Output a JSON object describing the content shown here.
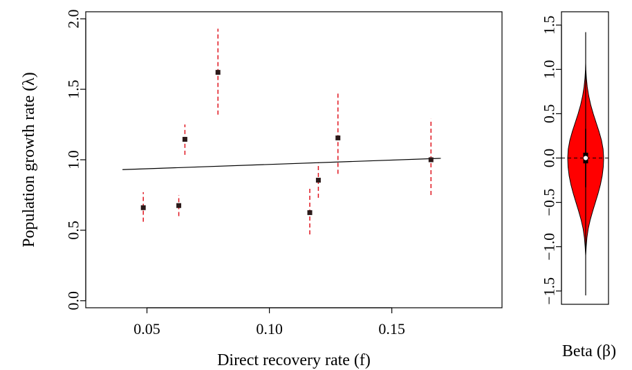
{
  "chart_data": [
    {
      "type": "scatter",
      "xlabel": "Direct recovery rate (f)",
      "ylabel": "Population growth rate (λ)",
      "xlim": [
        0.025,
        0.195
      ],
      "ylim": [
        -0.05,
        2.05
      ],
      "x_ticks": [
        0.05,
        0.1,
        0.15
      ],
      "x_tick_labels": [
        "0.05",
        "0.10",
        "0.15"
      ],
      "y_ticks": [
        0.0,
        0.5,
        1.0,
        1.5,
        2.0
      ],
      "y_tick_labels": [
        "0.0",
        "0.5",
        "1.0",
        "1.5",
        "2.0"
      ],
      "point_color": "#2b1a1a",
      "error_bar_color": "#e0141e",
      "points": [
        {
          "x": 0.0485,
          "y": 0.66,
          "lower": 0.56,
          "upper": 0.77
        },
        {
          "x": 0.063,
          "y": 0.675,
          "lower": 0.6,
          "upper": 0.75
        },
        {
          "x": 0.0655,
          "y": 1.145,
          "lower": 1.035,
          "upper": 1.25
        },
        {
          "x": 0.079,
          "y": 1.62,
          "lower": 1.32,
          "upper": 1.93
        },
        {
          "x": 0.1165,
          "y": 0.625,
          "lower": 0.47,
          "upper": 0.805
        },
        {
          "x": 0.12,
          "y": 0.855,
          "lower": 0.73,
          "upper": 0.98
        },
        {
          "x": 0.128,
          "y": 1.155,
          "lower": 0.9,
          "upper": 1.48
        },
        {
          "x": 0.166,
          "y": 1.0,
          "lower": 0.75,
          "upper": 1.29
        }
      ],
      "regression_line": {
        "x": [
          0.04,
          0.17
        ],
        "y": [
          0.93,
          1.01
        ],
        "color": "#000000"
      }
    },
    {
      "type": "violin",
      "xlabel": "Beta (β)",
      "ylabel": "",
      "ylim": [
        -1.65,
        1.65
      ],
      "y_ticks": [
        -1.5,
        -1.0,
        -0.5,
        0.0,
        0.5,
        1.0,
        1.5
      ],
      "y_tick_labels": [
        "−1.5",
        "−1.0",
        "−0.5",
        "0.0",
        "0.5",
        "1.0",
        "1.5"
      ],
      "fill_color": "#ff0000",
      "min": -1.55,
      "max": 1.42,
      "q1": -0.06,
      "median": 0.0,
      "q3": 0.06,
      "whisker_low": -0.33,
      "whisker_high": 0.33,
      "reference_line": 0.0,
      "density": [
        {
          "y": -1.1,
          "w": 0.0
        },
        {
          "y": -1.0,
          "w": 0.03
        },
        {
          "y": -0.9,
          "w": 0.07
        },
        {
          "y": -0.8,
          "w": 0.14
        },
        {
          "y": -0.7,
          "w": 0.25
        },
        {
          "y": -0.6,
          "w": 0.39
        },
        {
          "y": -0.5,
          "w": 0.54
        },
        {
          "y": -0.4,
          "w": 0.69
        },
        {
          "y": -0.3,
          "w": 0.82
        },
        {
          "y": -0.2,
          "w": 0.92
        },
        {
          "y": -0.1,
          "w": 0.98
        },
        {
          "y": 0.0,
          "w": 1.0
        },
        {
          "y": 0.1,
          "w": 0.97
        },
        {
          "y": 0.2,
          "w": 0.88
        },
        {
          "y": 0.3,
          "w": 0.74
        },
        {
          "y": 0.4,
          "w": 0.58
        },
        {
          "y": 0.5,
          "w": 0.42
        },
        {
          "y": 0.6,
          "w": 0.28
        },
        {
          "y": 0.7,
          "w": 0.17
        },
        {
          "y": 0.8,
          "w": 0.09
        },
        {
          "y": 0.9,
          "w": 0.04
        },
        {
          "y": 1.0,
          "w": 0.01
        },
        {
          "y": 1.07,
          "w": 0.0
        }
      ]
    }
  ]
}
